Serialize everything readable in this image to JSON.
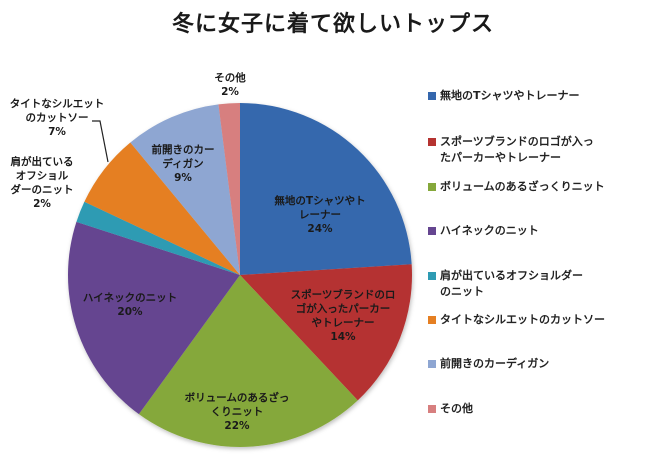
{
  "chart_data": {
    "type": "pie",
    "title": "冬に女子に着て欲しいトップス",
    "legend_position": "right",
    "start_angle_deg": 0,
    "direction": "clockwise",
    "slices": [
      {
        "name": "無地のTシャツやトレーナー",
        "value": 24,
        "label": "無地のTシャツやト\nレーナー\n24%",
        "color": "#3567ad"
      },
      {
        "name": "スポーツブランドのロゴが入ったパーカーやトレーナー",
        "value": 14,
        "label": "スポーツブランドのロ\nゴが入ったパーカー\nやトレーナー\n14%",
        "color": "#b53331"
      },
      {
        "name": "ボリュームのあるざっくりニット",
        "value": 22,
        "label": "ボリュームのあるざっ\nくりニット\n22%",
        "color": "#85a83b"
      },
      {
        "name": "ハイネックのニット",
        "value": 20,
        "label": "ハイネックのニット\n20%",
        "color": "#654590"
      },
      {
        "name": "肩が出ているオフショルダーのニット",
        "value": 2,
        "label": "肩が出ている\nオフショル\nダーのニット\n2%",
        "color": "#2e9bb3"
      },
      {
        "name": "タイトなシルエットのカットソー",
        "value": 7,
        "label": "タイトなシルエット\nのカットソー\n7%",
        "color": "#e57f22"
      },
      {
        "name": "前開きのカーディガン",
        "value": 9,
        "label": "前開きのカー\nディガン\n9%",
        "color": "#8ea6d2"
      },
      {
        "name": "その他",
        "value": 2,
        "label": "その他\n2%",
        "color": "#d77f7f"
      }
    ]
  },
  "title": "冬に女子に着て欲しいトップス",
  "legend": {
    "items": [
      {
        "label": "無地のTシャツやトレーナー",
        "color": "#3567ad"
      },
      {
        "label": "スポーツブランドのロゴが入っ\nたパーカーやトレーナー",
        "color": "#b53331"
      },
      {
        "label": "ボリュームのあるざっくりニット",
        "color": "#85a83b"
      },
      {
        "label": "ハイネックのニット",
        "color": "#654590"
      },
      {
        "label": "肩が出ているオフショルダー\nのニット",
        "color": "#2e9bb3"
      },
      {
        "label": "タイトなシルエットのカットソー",
        "color": "#e57f22"
      },
      {
        "label": "前開きのカーディガン",
        "color": "#8ea6d2"
      },
      {
        "label": "その他",
        "color": "#d77f7f"
      }
    ]
  },
  "slice_labels": [
    "無地のTシャツやト\nレーナー\n24%",
    "スポーツブランドのロ\nゴが入ったパーカー\nやトレーナー\n14%",
    "ボリュームのあるざっ\nくりニット\n22%",
    "ハイネックのニット\n20%",
    "肩が出ている\nオフショル\nダーのニット\n2%",
    "タイトなシルエット\nのカットソー\n7%",
    "前開きのカー\nディガン\n9%",
    "その他\n2%"
  ]
}
